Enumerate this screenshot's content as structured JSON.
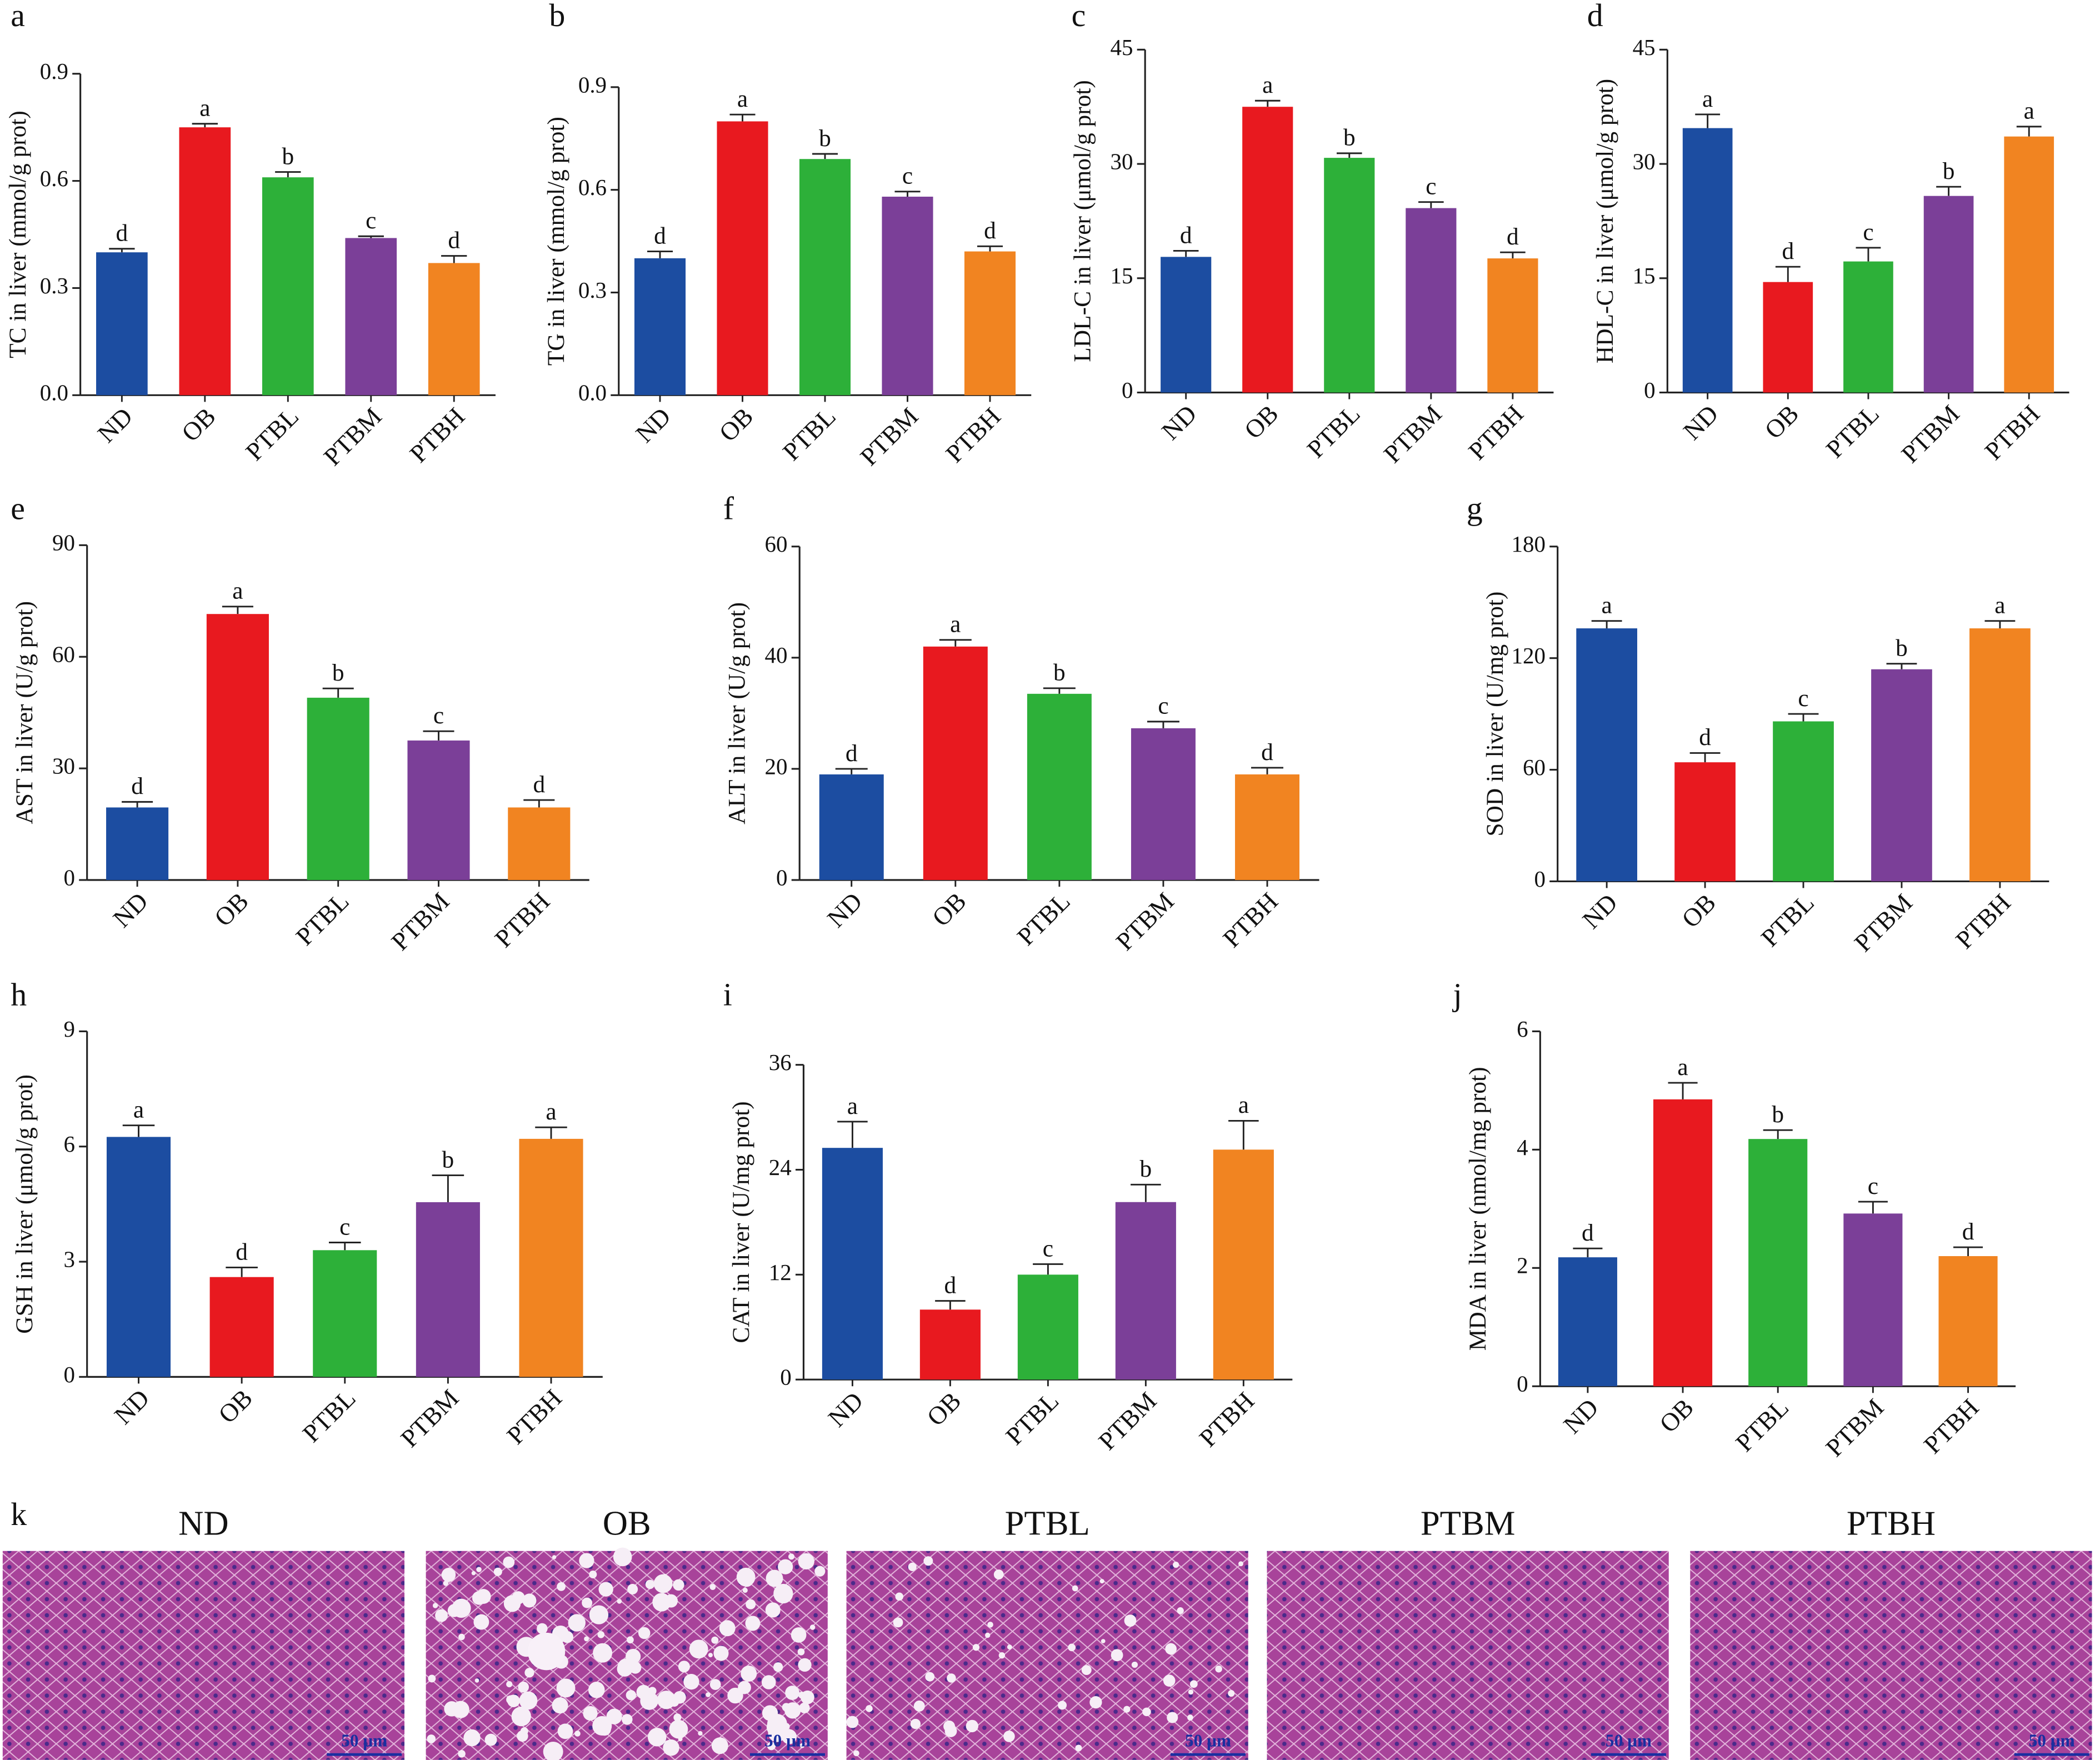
{
  "chart_data": [
    {
      "type": "bar",
      "panel": "a",
      "y_label": "TC in liver (mmol/g prot)",
      "categories": [
        "ND",
        "OB",
        "PTBL",
        "PTBM",
        "PTBH"
      ],
      "values": [
        0.4,
        0.75,
        0.61,
        0.44,
        0.37
      ],
      "errors": [
        0.01,
        0.01,
        0.015,
        0.005,
        0.02
      ],
      "annotations": [
        "d",
        "a",
        "b",
        "c",
        "d"
      ],
      "colors": [
        "#1c4da1",
        "#e8191f",
        "#2db039",
        "#7b3f98",
        "#f18421"
      ],
      "ylim": [
        0,
        0.9
      ],
      "yticks": [
        {
          "value": 0,
          "label": "0.0"
        },
        0.3,
        0.6,
        0.9
      ]
    },
    {
      "type": "bar",
      "panel": "b",
      "y_label": "TG in liver (mmol/g prot)",
      "categories": [
        "ND",
        "OB",
        "PTBL",
        "PTBM",
        "PTBH"
      ],
      "values": [
        0.4,
        0.8,
        0.69,
        0.58,
        0.42
      ],
      "errors": [
        0.02,
        0.02,
        0.015,
        0.015,
        0.015
      ],
      "annotations": [
        "d",
        "a",
        "b",
        "c",
        "d"
      ],
      "colors": [
        "#1c4da1",
        "#e8191f",
        "#2db039",
        "#7b3f98",
        "#f18421"
      ],
      "ylim": [
        0,
        0.9
      ],
      "yticks": [
        {
          "value": 0,
          "label": "0.0"
        },
        0.3,
        0.6,
        0.9
      ]
    },
    {
      "type": "bar",
      "panel": "c",
      "y_label": "LDL-C in liver (μmol/g prot)",
      "categories": [
        "ND",
        "OB",
        "PTBL",
        "PTBM",
        "PTBH"
      ],
      "values": [
        17.8,
        37.5,
        30.8,
        24.2,
        17.6
      ],
      "errors": [
        0.8,
        0.8,
        0.6,
        0.8,
        0.8
      ],
      "annotations": [
        "d",
        "a",
        "b",
        "c",
        "d"
      ],
      "colors": [
        "#1c4da1",
        "#e8191f",
        "#2db039",
        "#7b3f98",
        "#f18421"
      ],
      "ylim": [
        0,
        45
      ],
      "yticks": [
        0,
        15,
        30,
        45
      ]
    },
    {
      "type": "bar",
      "panel": "d",
      "y_label": "HDL-C in liver (μmol/g prot)",
      "categories": [
        "ND",
        "OB",
        "PTBL",
        "PTBM",
        "PTBH"
      ],
      "values": [
        34.7,
        14.5,
        17.2,
        25.8,
        33.6
      ],
      "errors": [
        1.8,
        2,
        1.8,
        1.2,
        1.3
      ],
      "annotations": [
        "a",
        "d",
        "c",
        "b",
        "a"
      ],
      "colors": [
        "#1c4da1",
        "#e8191f",
        "#2db039",
        "#7b3f98",
        "#f18421"
      ],
      "ylim": [
        0,
        45
      ],
      "yticks": [
        0,
        15,
        30,
        45
      ]
    },
    {
      "type": "bar",
      "panel": "e",
      "y_label": "AST in liver (U/g prot)",
      "categories": [
        "ND",
        "OB",
        "PTBL",
        "PTBM",
        "PTBH"
      ],
      "values": [
        19.5,
        71.5,
        49,
        37.5,
        19.5
      ],
      "errors": [
        1.5,
        2,
        2.5,
        2.5,
        2
      ],
      "annotations": [
        "d",
        "a",
        "b",
        "c",
        "d"
      ],
      "colors": [
        "#1c4da1",
        "#e8191f",
        "#2db039",
        "#7b3f98",
        "#f18421"
      ],
      "ylim": [
        0,
        90
      ],
      "yticks": [
        0,
        30,
        60,
        90
      ]
    },
    {
      "type": "bar",
      "panel": "f",
      "y_label": "ALT in liver (U/g prot)",
      "categories": [
        "ND",
        "OB",
        "PTBL",
        "PTBM",
        "PTBH"
      ],
      "values": [
        19,
        42,
        33.5,
        27.3,
        19
      ],
      "errors": [
        1,
        1.2,
        1,
        1.2,
        1.2
      ],
      "annotations": [
        "d",
        "a",
        "b",
        "c",
        "d"
      ],
      "colors": [
        "#1c4da1",
        "#e8191f",
        "#2db039",
        "#7b3f98",
        "#f18421"
      ],
      "ylim": [
        0,
        60
      ],
      "yticks": [
        0,
        20,
        40,
        60
      ]
    },
    {
      "type": "bar",
      "panel": "g",
      "y_label": "SOD in liver (U/mg prot)",
      "categories": [
        "ND",
        "OB",
        "PTBL",
        "PTBM",
        "PTBH"
      ],
      "values": [
        136,
        64,
        86,
        114,
        136
      ],
      "errors": [
        4,
        5,
        4,
        3,
        4
      ],
      "annotations": [
        "a",
        "d",
        "c",
        "b",
        "a"
      ],
      "colors": [
        "#1c4da1",
        "#e8191f",
        "#2db039",
        "#7b3f98",
        "#f18421"
      ],
      "ylim": [
        0,
        180
      ],
      "yticks": [
        0,
        60,
        120,
        180
      ]
    },
    {
      "type": "bar",
      "panel": "h",
      "y_label": "GSH in liver (μmol/g prot)",
      "categories": [
        "ND",
        "OB",
        "PTBL",
        "PTBM",
        "PTBH"
      ],
      "values": [
        6.25,
        2.6,
        3.3,
        4.55,
        6.2
      ],
      "errors": [
        0.3,
        0.25,
        0.2,
        0.7,
        0.3
      ],
      "annotations": [
        "a",
        "d",
        "c",
        "b",
        "a"
      ],
      "colors": [
        "#1c4da1",
        "#e8191f",
        "#2db039",
        "#7b3f98",
        "#f18421"
      ],
      "ylim": [
        0,
        9
      ],
      "yticks": [
        0,
        3,
        6,
        9
      ]
    },
    {
      "type": "bar",
      "panel": "i",
      "y_label": "CAT in liver (U/mg prot)",
      "categories": [
        "ND",
        "OB",
        "PTBL",
        "PTBM",
        "PTBH"
      ],
      "values": [
        26.5,
        8,
        12,
        20.3,
        26.3
      ],
      "errors": [
        3,
        1,
        1.2,
        2,
        3.3
      ],
      "annotations": [
        "a",
        "d",
        "c",
        "b",
        "a"
      ],
      "colors": [
        "#1c4da1",
        "#e8191f",
        "#2db039",
        "#7b3f98",
        "#f18421"
      ],
      "ylim": [
        0,
        36
      ],
      "yticks": [
        0,
        12,
        24,
        36
      ]
    },
    {
      "type": "bar",
      "panel": "j",
      "y_label": "MDA in liver (nmol/mg prot)",
      "categories": [
        "ND",
        "OB",
        "PTBL",
        "PTBM",
        "PTBH"
      ],
      "values": [
        2.18,
        4.85,
        4.18,
        2.92,
        2.2
      ],
      "errors": [
        0.15,
        0.28,
        0.15,
        0.2,
        0.15
      ],
      "annotations": [
        "d",
        "a",
        "b",
        "c",
        "d"
      ],
      "colors": [
        "#1c4da1",
        "#e8191f",
        "#2db039",
        "#7b3f98",
        "#f18421"
      ],
      "ylim": [
        0,
        6
      ],
      "yticks": [
        0,
        2,
        4,
        6
      ]
    }
  ],
  "histology": {
    "panel": "k",
    "titles": [
      "ND",
      "OB",
      "PTBL",
      "PTBM",
      "PTBH"
    ],
    "scale_bar": "50 μm"
  }
}
